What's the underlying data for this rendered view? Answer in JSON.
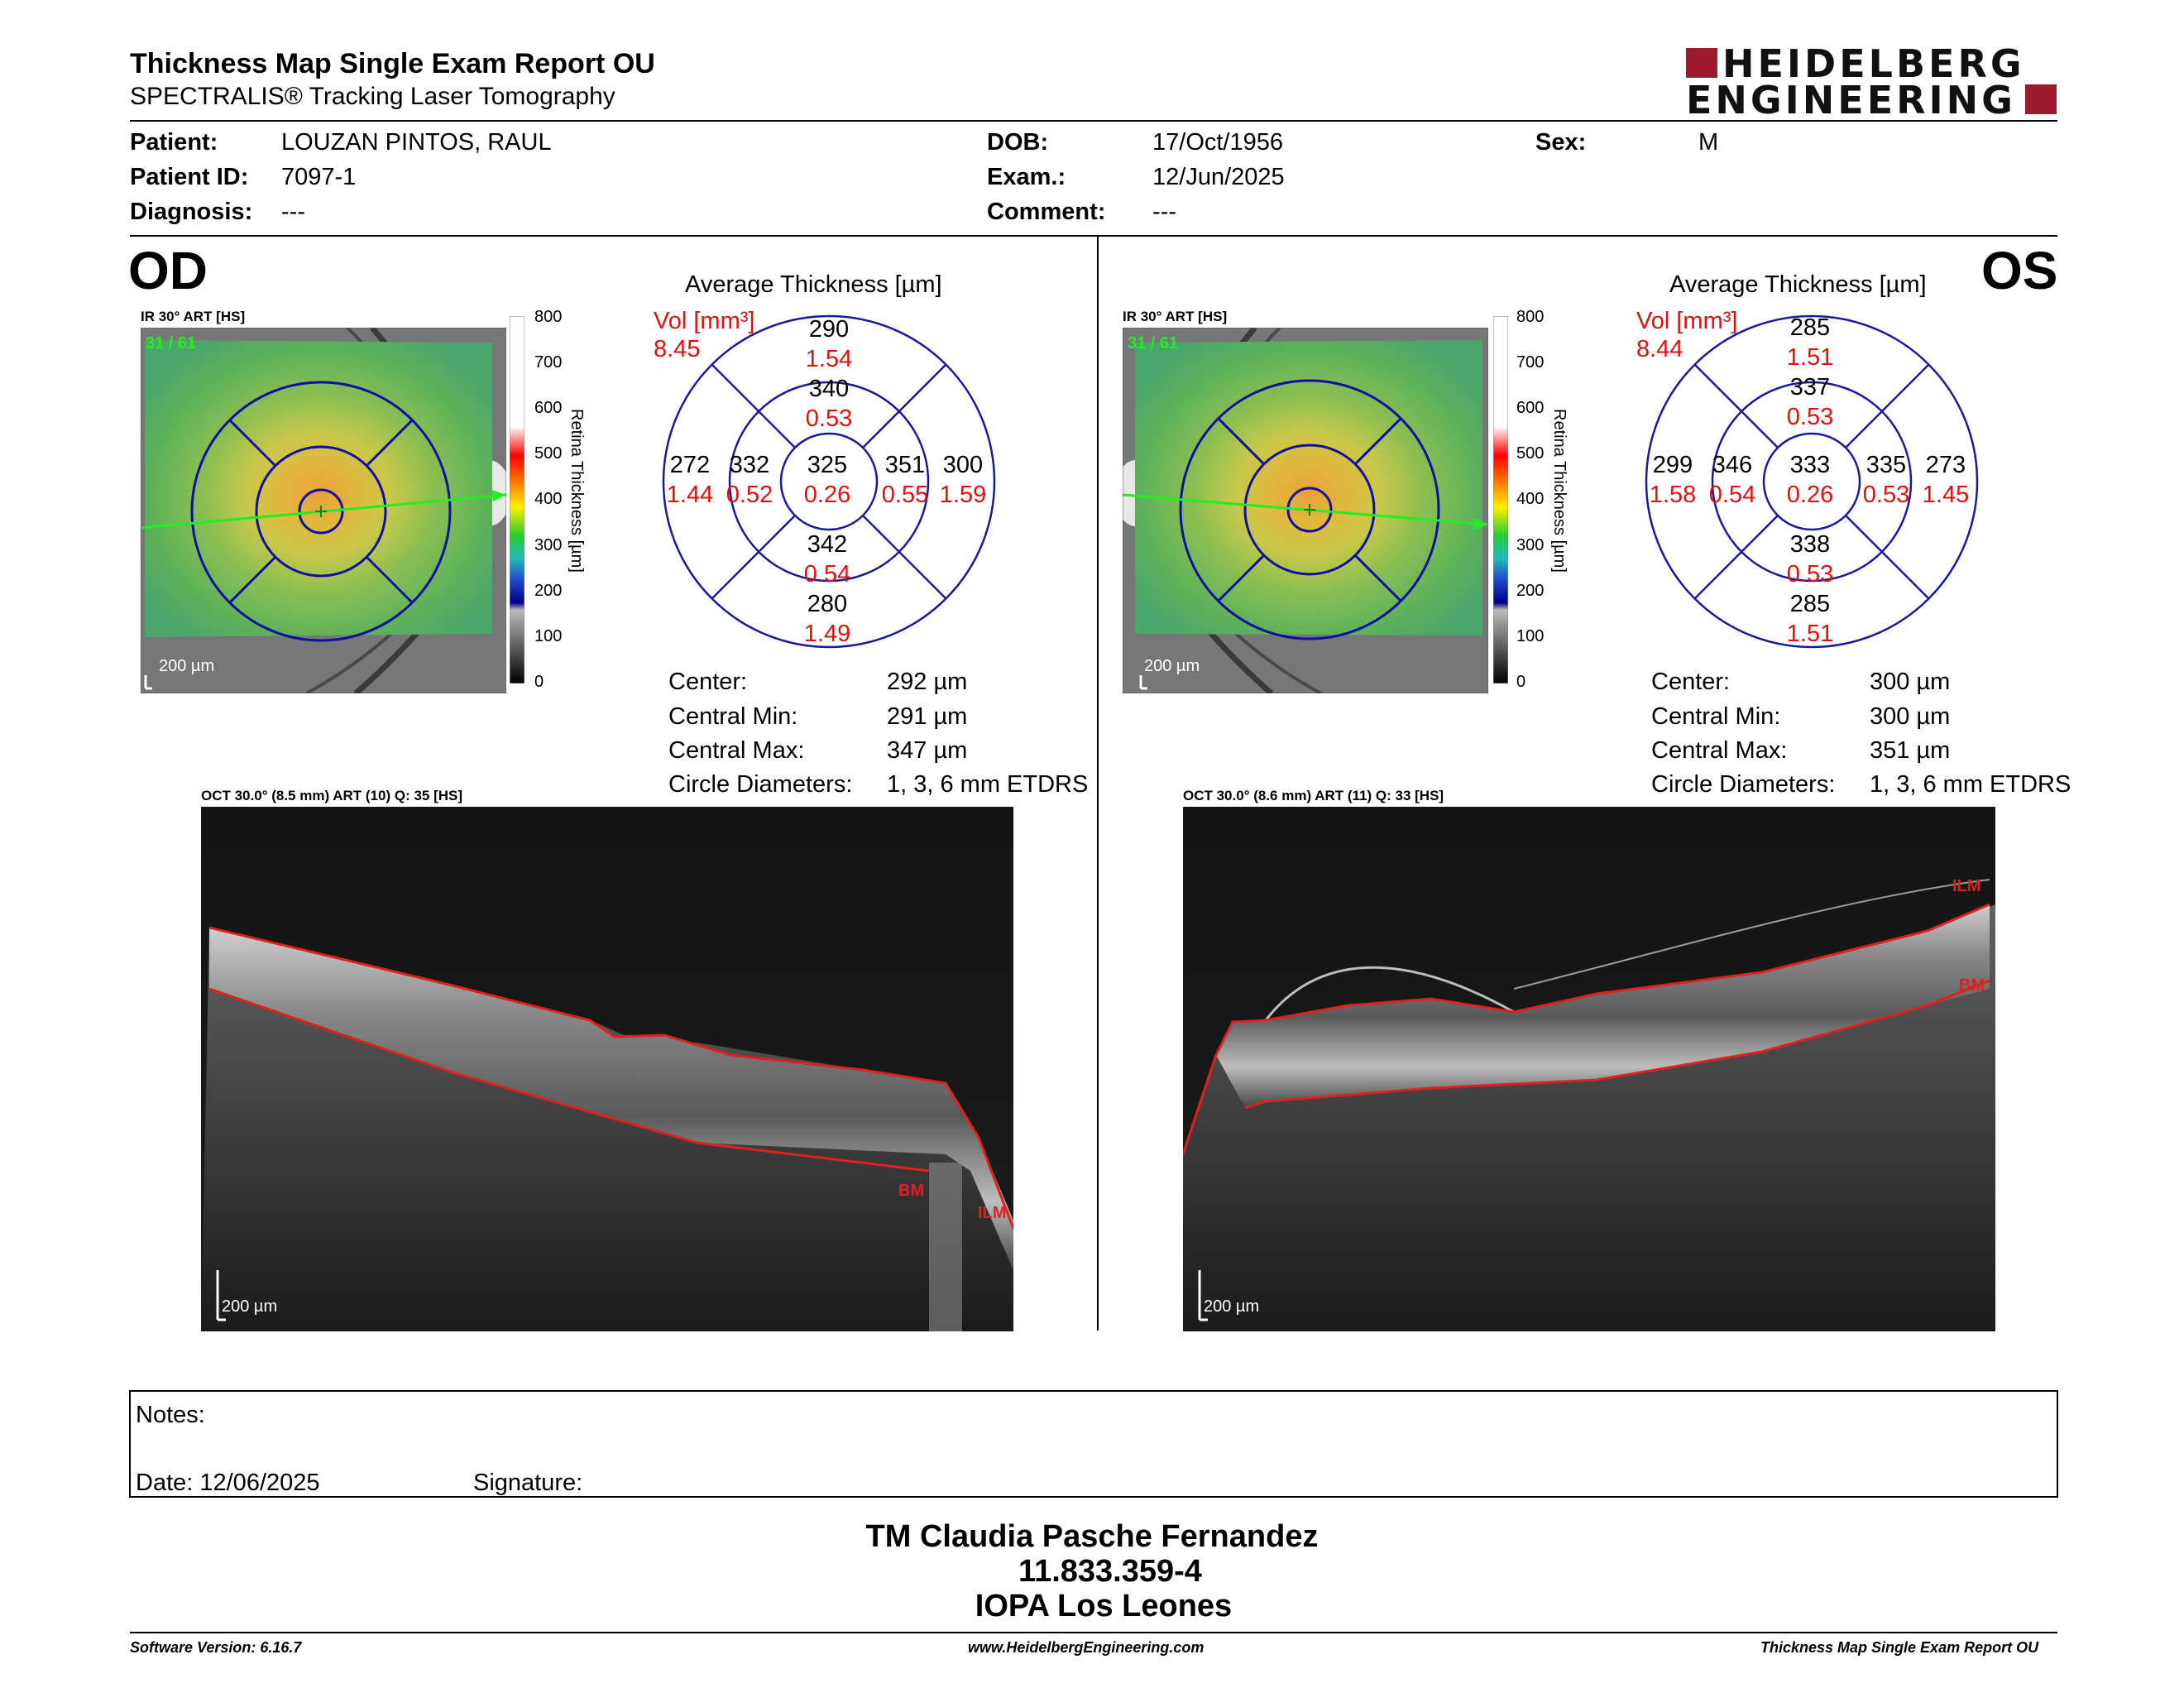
{
  "header": {
    "title": "Thickness Map Single Exam Report OU",
    "subtitle": "SPECTRALIS® Tracking Laser Tomography",
    "logo_line1": "HEIDELBERG",
    "logo_line2": "ENGINEERING",
    "logo_color": "#9b1b2d"
  },
  "patient": {
    "patient_label": "Patient:",
    "patient_value": "LOUZAN PINTOS, RAUL",
    "id_label": "Patient ID:",
    "id_value": "7097-1",
    "diagnosis_label": "Diagnosis:",
    "diagnosis_value": "---",
    "dob_label": "DOB:",
    "dob_value": "17/Oct/1956",
    "exam_label": "Exam.:",
    "exam_value": "12/Jun/2025",
    "comment_label": "Comment:",
    "comment_value": "---",
    "sex_label": "Sex:",
    "sex_value": "M"
  },
  "od": {
    "eye_label": "OD",
    "ir_label": "IR 30° ART [HS]",
    "ir_overlay_text": "31 / 61",
    "ir_scale": "200 µm",
    "avg_title": "Average Thickness [µm]",
    "vol_label": "Vol [mm³]",
    "vol_value": "8.45",
    "sectors": {
      "outer_top": "290",
      "outer_top_vol": "1.54",
      "inner_top": "340",
      "inner_top_vol": "0.53",
      "outer_left": "272",
      "outer_left_vol": "1.44",
      "inner_left": "332",
      "inner_left_vol": "0.52",
      "center": "325",
      "center_vol": "0.26",
      "inner_right": "351",
      "inner_right_vol": "0.55",
      "outer_right": "300",
      "outer_right_vol": "1.59",
      "inner_bottom": "342",
      "inner_bottom_vol": "0.54",
      "outer_bottom": "280",
      "outer_bottom_vol": "1.49"
    },
    "stats": {
      "center_label": "Center:",
      "center_value": "292 µm",
      "min_label": "Central Min:",
      "min_value": "291 µm",
      "max_label": "Central Max:",
      "max_value": "347 µm",
      "diam_label": "Circle Diameters:",
      "diam_value": "1, 3, 6 mm ETDRS"
    },
    "oct_label": "OCT 30.0° (8.5 mm) ART (10) Q: 35 [HS]",
    "oct_scale": "200 µm",
    "ilm_label": "ILM",
    "bm_label": "BM"
  },
  "os": {
    "eye_label": "OS",
    "ir_label": "IR 30° ART [HS]",
    "ir_overlay_text": "31 / 61",
    "ir_scale": "200 µm",
    "avg_title": "Average Thickness [µm]",
    "vol_label": "Vol [mm³]",
    "vol_value": "8.44",
    "sectors": {
      "outer_top": "285",
      "outer_top_vol": "1.51",
      "inner_top": "337",
      "inner_top_vol": "0.53",
      "outer_left": "299",
      "outer_left_vol": "1.58",
      "inner_left": "346",
      "inner_left_vol": "0.54",
      "center": "333",
      "center_vol": "0.26",
      "inner_right": "335",
      "inner_right_vol": "0.53",
      "outer_right": "273",
      "outer_right_vol": "1.45",
      "inner_bottom": "338",
      "inner_bottom_vol": "0.53",
      "outer_bottom": "285",
      "outer_bottom_vol": "1.51"
    },
    "stats": {
      "center_label": "Center:",
      "center_value": "300 µm",
      "min_label": "Central Min:",
      "min_value": "300 µm",
      "max_label": "Central Max:",
      "max_value": "351 µm",
      "diam_label": "Circle Diameters:",
      "diam_value": "1, 3, 6 mm ETDRS"
    },
    "oct_label": "OCT 30.0° (8.6 mm) ART (11) Q: 33 [HS]",
    "oct_scale": "200 µm",
    "ilm_label": "ILM",
    "bm_label": "BM"
  },
  "color_scale": {
    "ticks": [
      "800",
      "700",
      "600",
      "500",
      "400",
      "300",
      "200",
      "100",
      "0"
    ],
    "title": "Retina Thickness [µm]"
  },
  "notes": {
    "notes_label": "Notes:",
    "date_label": "Date: 12/06/2025",
    "signature_label": "Signature:"
  },
  "signature_block": {
    "line1": "TM Claudia Pasche Fernandez",
    "line2": "11.833.359-4",
    "line3": "IOPA Los Leones"
  },
  "footer": {
    "left": "Software Version: 6.16.7",
    "center": "www.HeidelbergEngineering.com",
    "right": "Thickness Map Single Exam Report OU"
  }
}
